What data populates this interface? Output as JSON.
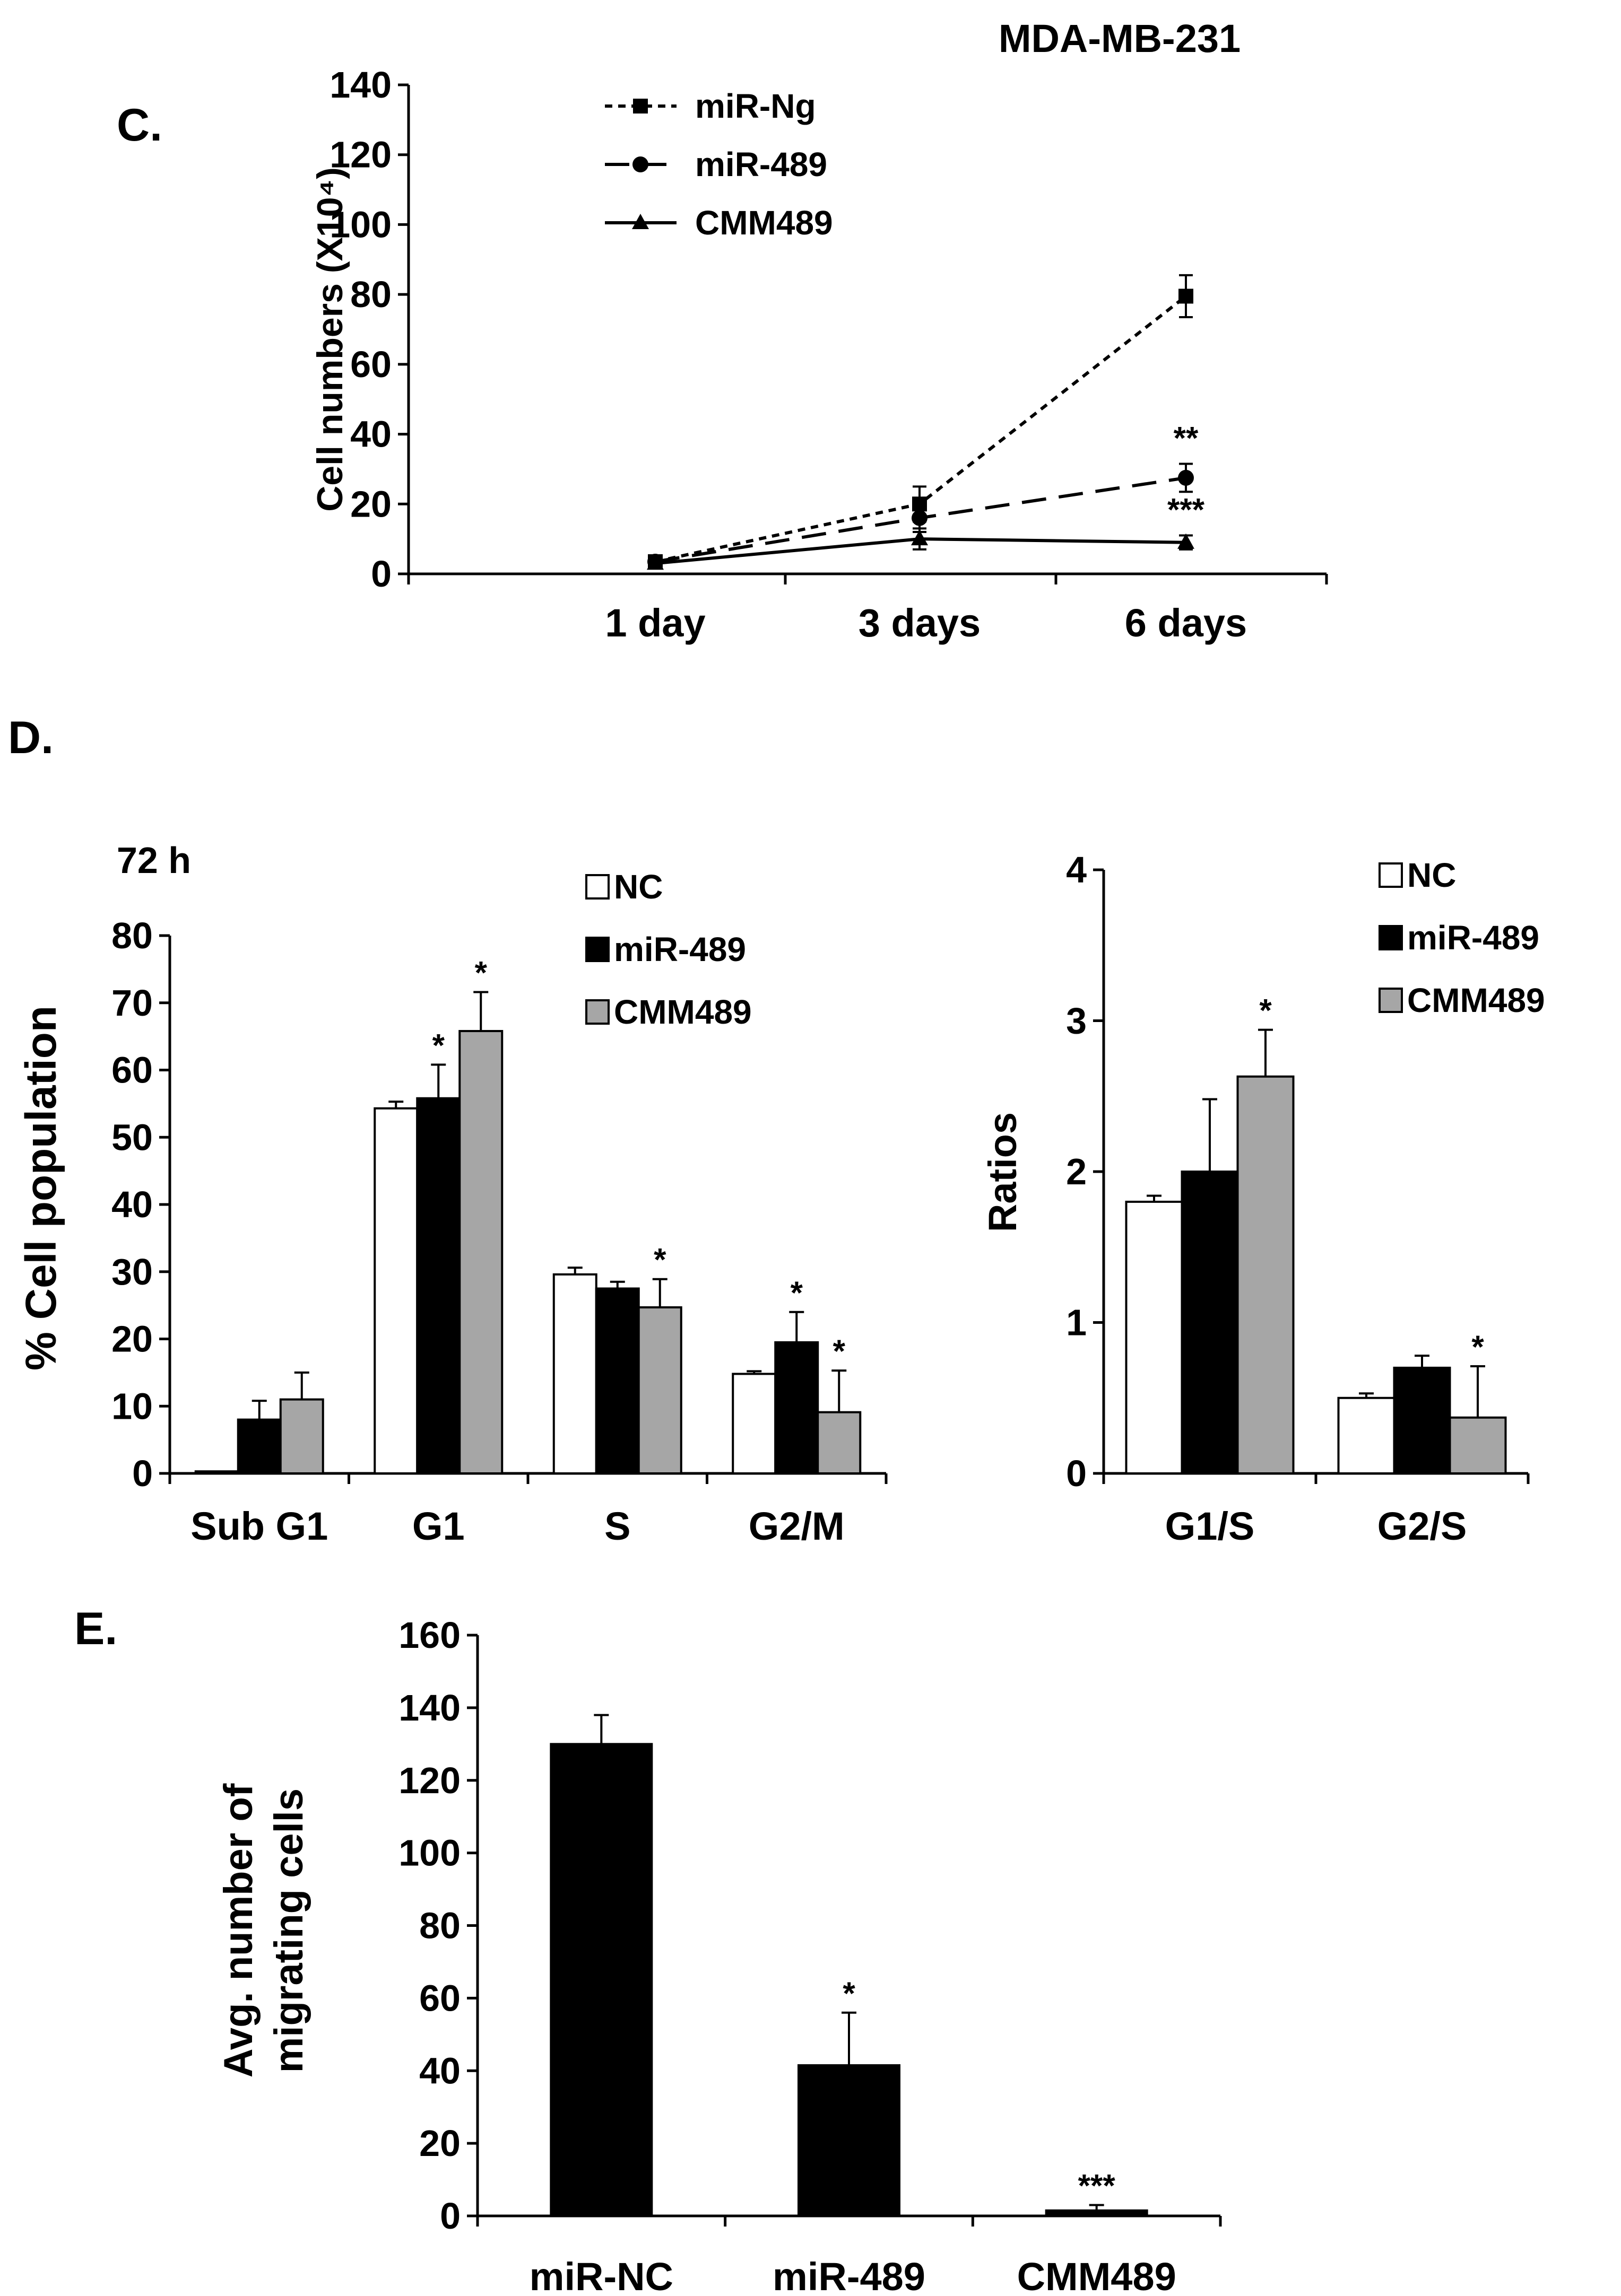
{
  "figure": {
    "panel_c_label": "C.",
    "panel_d_label": "D.",
    "panel_e_label": "E."
  },
  "colors": {
    "nc": "#ffffff",
    "mir489": "#000000",
    "cmm489": "#a6a6a6",
    "axis": "#000000"
  },
  "chart_data": [
    {
      "id": "C",
      "type": "line",
      "title": "MDA-MB-231",
      "xlabel": "",
      "ylabel": "Cell numbers (X10⁴)",
      "categories": [
        "1 day",
        "3 days",
        "6 days"
      ],
      "ylim": [
        0,
        140
      ],
      "yticks": [
        0,
        20,
        40,
        60,
        80,
        100,
        120,
        140
      ],
      "legend_position": "top-left",
      "series": [
        {
          "name": "miR-Ng",
          "values": [
            3.5,
            20,
            79.5
          ],
          "errors": [
            1.5,
            5,
            6
          ],
          "marker": "square",
          "line": "dotted",
          "sig": [
            "",
            "",
            ""
          ]
        },
        {
          "name": "miR-489",
          "values": [
            3.5,
            16,
            27.5
          ],
          "errors": [
            1.5,
            4,
            4
          ],
          "marker": "circle",
          "line": "dashed",
          "sig": [
            "",
            "",
            "**"
          ]
        },
        {
          "name": "CMM489",
          "values": [
            3,
            10,
            9
          ],
          "errors": [
            1,
            3,
            2
          ],
          "marker": "triangle",
          "line": "solid",
          "sig": [
            "",
            "",
            "***"
          ]
        }
      ]
    },
    {
      "id": "D-left",
      "type": "bar",
      "title": "72 h",
      "xlabel": "",
      "ylabel": "% Cell population",
      "categories": [
        "Sub G1",
        "G1",
        "S",
        "G2/M"
      ],
      "ylim": [
        0,
        80
      ],
      "yticks": [
        0,
        10,
        20,
        30,
        40,
        50,
        60,
        70,
        80
      ],
      "legend_position": "top-right",
      "series": [
        {
          "name": "NC",
          "values": [
            0.3,
            54.3,
            29.6,
            14.8
          ],
          "errors": [
            0,
            1,
            1,
            0.4
          ],
          "sig": [
            "",
            "",
            "",
            ""
          ]
        },
        {
          "name": "miR-489",
          "values": [
            8,
            55.8,
            27.5,
            19.5
          ],
          "errors": [
            2.8,
            5,
            1,
            4.5
          ],
          "sig": [
            "",
            "*",
            "",
            "*"
          ]
        },
        {
          "name": "CMM489",
          "values": [
            11,
            65.8,
            24.7,
            9.1
          ],
          "errors": [
            4,
            5.8,
            4.2,
            6.2
          ],
          "sig": [
            "",
            "*",
            "*",
            "*"
          ]
        }
      ]
    },
    {
      "id": "D-right",
      "type": "bar",
      "title": "",
      "xlabel": "",
      "ylabel": "Ratios",
      "categories": [
        "G1/S",
        "G2/S"
      ],
      "ylim": [
        0,
        4
      ],
      "yticks": [
        0,
        1,
        2,
        3,
        4
      ],
      "legend_position": "top-right",
      "series": [
        {
          "name": "NC",
          "values": [
            1.8,
            0.5
          ],
          "errors": [
            0.04,
            0.03
          ],
          "sig": [
            "",
            ""
          ]
        },
        {
          "name": "miR-489",
          "values": [
            2.0,
            0.7
          ],
          "errors": [
            0.48,
            0.08
          ],
          "sig": [
            "",
            ""
          ]
        },
        {
          "name": "CMM489",
          "values": [
            2.63,
            0.37
          ],
          "errors": [
            0.31,
            0.34
          ],
          "sig": [
            "*",
            "*"
          ]
        }
      ]
    },
    {
      "id": "E",
      "type": "bar",
      "title": "",
      "xlabel": "",
      "ylabel": "Avg. number of migrating cells",
      "ylabel_lines": [
        "Avg. number of",
        "migrating cells"
      ],
      "categories": [
        "miR-NC",
        "miR-489",
        "CMM489"
      ],
      "ylim": [
        0,
        160
      ],
      "yticks": [
        0,
        20,
        40,
        60,
        80,
        100,
        120,
        140,
        160
      ],
      "series": [
        {
          "name": "Migrating cells",
          "values": [
            130,
            41.5,
            1.5
          ],
          "errors": [
            8,
            14.5,
            1.5
          ],
          "sig": [
            "",
            "*",
            "***"
          ]
        }
      ]
    }
  ]
}
